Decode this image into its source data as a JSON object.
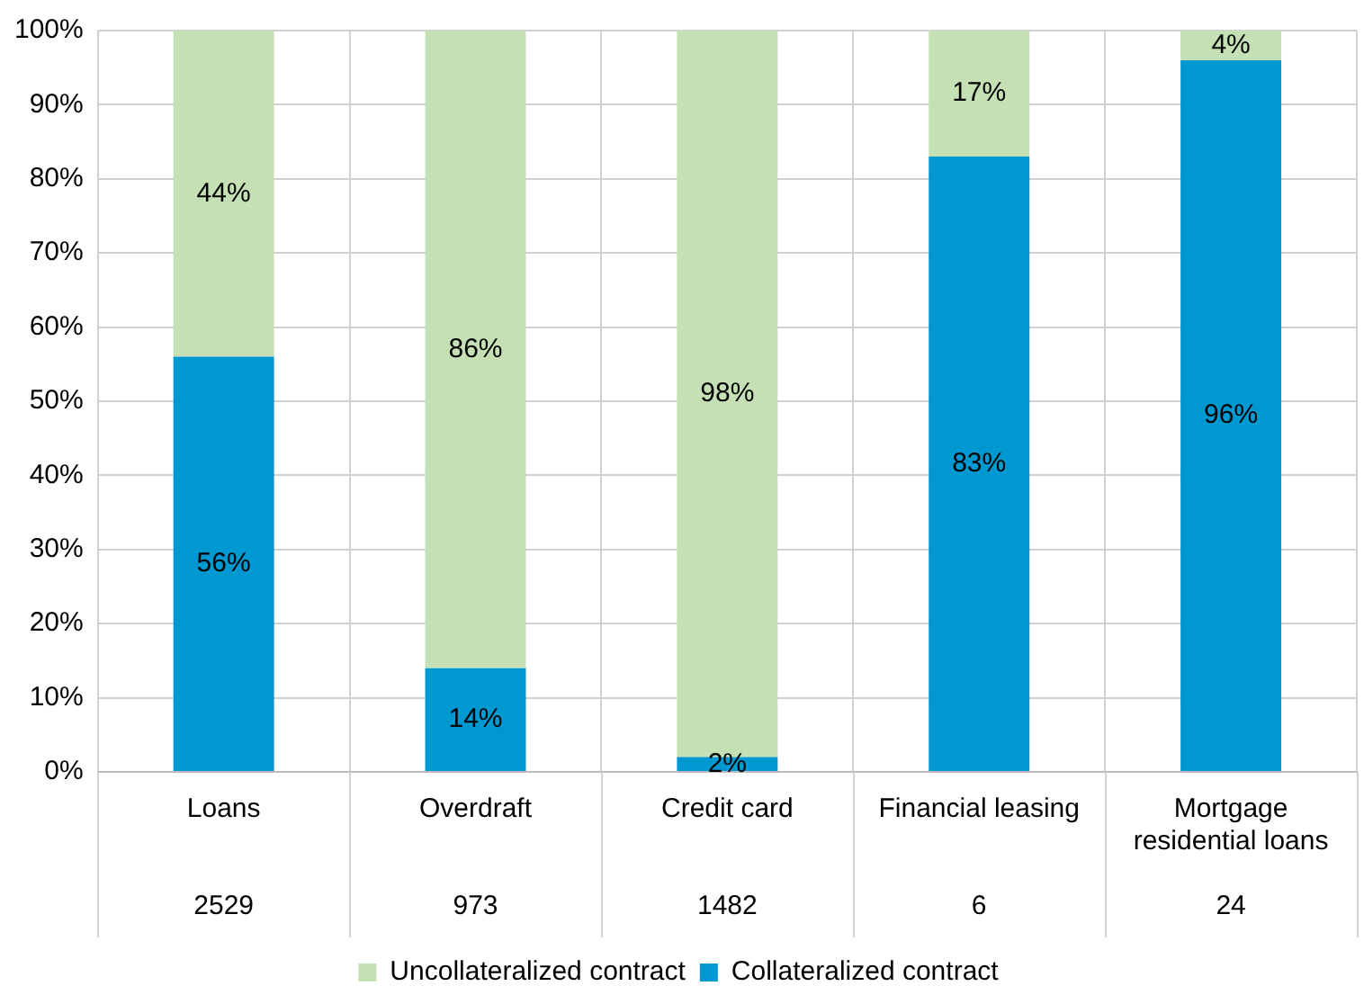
{
  "chart_data": {
    "type": "bar",
    "stacked": true,
    "categories": [
      "Loans",
      "Overdraft",
      "Credit card",
      "Financial leasing",
      "Mortgage residential loans"
    ],
    "series": [
      {
        "name": "Collateralized contract",
        "color": "#0098d0",
        "values": [
          56,
          14,
          2,
          83,
          96
        ],
        "value_labels": [
          "56%",
          "14%",
          "2%",
          "83%",
          "96%"
        ]
      },
      {
        "name": "Uncollateralized contract",
        "color": "#c5e0b4",
        "values": [
          44,
          86,
          98,
          17,
          4
        ],
        "value_labels": [
          "44%",
          "86%",
          "98%",
          "17%",
          "4%"
        ]
      }
    ],
    "ylim": [
      0,
      100
    ],
    "yticks": [
      {
        "value": 0,
        "label": "0%"
      },
      {
        "value": 10,
        "label": "10%"
      },
      {
        "value": 20,
        "label": "20%"
      },
      {
        "value": 30,
        "label": "30%"
      },
      {
        "value": 40,
        "label": "40%"
      },
      {
        "value": 50,
        "label": "50%"
      },
      {
        "value": 60,
        "label": "60%"
      },
      {
        "value": 70,
        "label": "70%"
      },
      {
        "value": 80,
        "label": "80%"
      },
      {
        "value": 90,
        "label": "90%"
      },
      {
        "value": 100,
        "label": "100%"
      }
    ],
    "grid": true,
    "legend": "bottom",
    "annotations": [
      "2529",
      "973",
      "1482",
      "6",
      "24"
    ]
  }
}
